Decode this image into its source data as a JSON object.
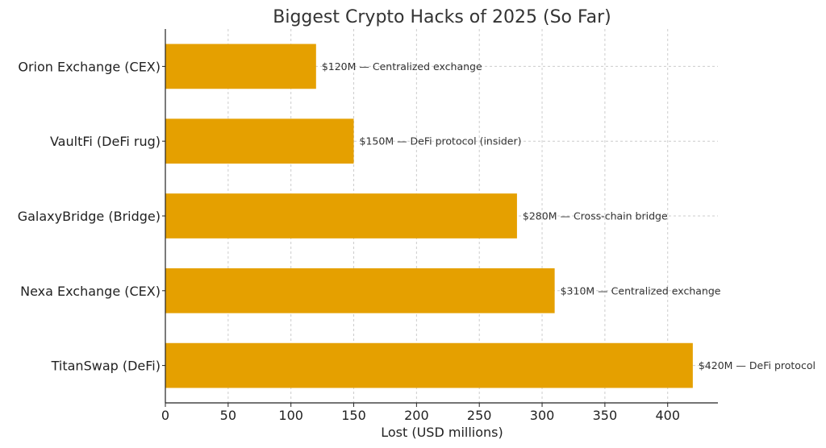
{
  "chart_data": {
    "type": "bar",
    "orientation": "horizontal",
    "title": "Biggest Crypto Hacks of 2025 (So Far)",
    "xlabel": "Lost (USD millions)",
    "ylabel": "",
    "categories": [
      "Orion Exchange (CEX)",
      "VaultFi (DeFi rug)",
      "GalaxyBridge (Bridge)",
      "Nexa Exchange (CEX)",
      "TitanSwap (DeFi)"
    ],
    "values": [
      120,
      150,
      280,
      310,
      420
    ],
    "data_labels": [
      "$120M — Centralized exchange",
      "$150M — DeFi protocol (insider)",
      "$280M — Cross-chain bridge",
      "$310M — Centralized exchange",
      "$420M — DeFi protocol"
    ],
    "xlim": [
      0,
      440
    ],
    "xticks": [
      0,
      50,
      100,
      150,
      200,
      250,
      300,
      350,
      400
    ],
    "grid": true,
    "bar_color": "#E5A000",
    "grid_color": "#cccccc"
  }
}
